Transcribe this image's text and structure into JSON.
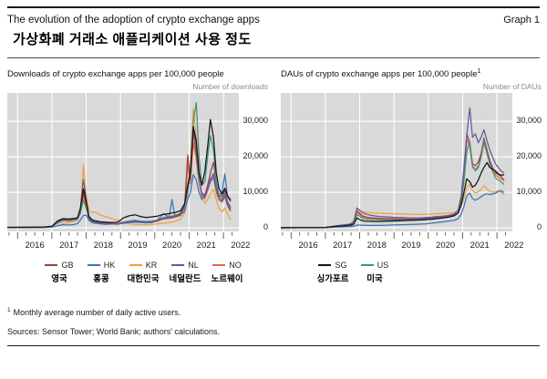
{
  "header": {
    "title_en": "The evolution of the adoption of crypto exchange apps",
    "graph_label": "Graph 1",
    "title_ko": "가상화폐 거래소 애플리케이션 사용 정도"
  },
  "panels": [
    {
      "title": "Downloads of crypto exchange apps per 100,000 people",
      "title_sup": "",
      "axis_label": "Number of downloads"
    },
    {
      "title": "DAUs of crypto exchange apps per 100,000 people",
      "title_sup": "1",
      "axis_label": "Number of DAUs"
    }
  ],
  "legend": {
    "items": [
      {
        "code": "GB",
        "name_ko": "영국"
      },
      {
        "code": "HK",
        "name_ko": "홍콩"
      },
      {
        "code": "KR",
        "name_ko": "대한민국"
      },
      {
        "code": "NL",
        "name_ko": "네덜란드"
      },
      {
        "code": "NO",
        "name_ko": "노르웨이"
      },
      {
        "code": "SG",
        "name_ko": "싱가포르"
      },
      {
        "code": "US",
        "name_ko": "미국"
      }
    ]
  },
  "footnotes": {
    "sup": "1",
    "note": "Monthly average number of daily active users.",
    "sources": "Sources: Sensor Tower; World Bank; authors' calculations."
  },
  "colors": {
    "GB": "#a0403c",
    "HK": "#3e72b5",
    "KR": "#efa13c",
    "NL": "#6b549c",
    "NO": "#e26a3c",
    "SG": "#141414",
    "US": "#41917f",
    "plot_bg": "#d9d9d9",
    "grid": "#ffffff",
    "muted_text": "#8c8c8c"
  },
  "chart_data": [
    {
      "type": "line",
      "title": "Downloads of crypto exchange apps per 100,000 people",
      "ylabel": "Number of downloads",
      "xlim": [
        2015.7,
        2022.45
      ],
      "ylim": [
        -1000,
        38000
      ],
      "yticks": [
        0,
        10000,
        20000,
        30000
      ],
      "ytick_labels": [
        "0",
        "10,000",
        "20,000",
        "30,000"
      ],
      "year_gridlines": [
        2016,
        2017,
        2018,
        2019,
        2020,
        2021,
        2022
      ],
      "year_labels": [
        "2016",
        "2017",
        "2018",
        "2019",
        "2020",
        "2021",
        "2022"
      ],
      "x": [
        2015.7,
        2016.0,
        2016.25,
        2016.5,
        2016.75,
        2017.0,
        2017.17,
        2017.33,
        2017.5,
        2017.67,
        2017.75,
        2017.83,
        2017.92,
        2018.0,
        2018.08,
        2018.17,
        2018.25,
        2018.42,
        2018.58,
        2018.75,
        2018.92,
        2019.08,
        2019.25,
        2019.42,
        2019.58,
        2019.75,
        2019.92,
        2020.08,
        2020.25,
        2020.42,
        2020.5,
        2020.58,
        2020.75,
        2020.87,
        2020.96,
        2021.04,
        2021.12,
        2021.21,
        2021.29,
        2021.37,
        2021.46,
        2021.54,
        2021.62,
        2021.71,
        2021.79,
        2021.87,
        2021.96,
        2022.04,
        2022.12,
        2022.21
      ],
      "series": [
        {
          "name": "NO",
          "values": [
            90,
            120,
            130,
            150,
            180,
            300,
            1300,
            2000,
            1900,
            2200,
            2400,
            4000,
            9200,
            6000,
            2500,
            1800,
            1500,
            1300,
            1200,
            1100,
            1000,
            1300,
            1600,
            1800,
            1600,
            1500,
            1600,
            1900,
            2500,
            2700,
            2800,
            3000,
            3500,
            5500,
            17800,
            12500,
            24000,
            19500,
            12500,
            8800,
            8200,
            10500,
            13000,
            14000,
            10000,
            7800,
            7200,
            8800,
            6200,
            4600
          ]
        },
        {
          "name": "GB",
          "values": [
            100,
            140,
            150,
            170,
            200,
            350,
            1500,
            2200,
            2100,
            2400,
            2600,
            4200,
            10200,
            6500,
            2800,
            2000,
            1700,
            1400,
            1300,
            1200,
            1100,
            1400,
            1700,
            1900,
            1700,
            1600,
            1700,
            2000,
            2600,
            2800,
            2900,
            3100,
            3600,
            6000,
            20500,
            13500,
            27000,
            21000,
            13500,
            9800,
            9200,
            12000,
            15500,
            18500,
            12500,
            9300,
            8800,
            10500,
            7400,
            5800
          ]
        },
        {
          "name": "KR",
          "values": [
            50,
            70,
            70,
            80,
            90,
            200,
            600,
            1200,
            1500,
            1800,
            2200,
            5000,
            17800,
            9200,
            5000,
            4300,
            4500,
            3600,
            3100,
            2600,
            2100,
            1300,
            1100,
            1000,
            900,
            900,
            1000,
            1100,
            1300,
            1500,
            1600,
            1800,
            2400,
            4200,
            9000,
            16000,
            33500,
            26000,
            13000,
            8500,
            7000,
            8000,
            9500,
            10800,
            8000,
            5500,
            4500,
            5600,
            3900,
            2300
          ]
        },
        {
          "name": "HK",
          "values": [
            80,
            100,
            110,
            120,
            130,
            200,
            600,
            900,
            800,
            1000,
            1200,
            2200,
            3500,
            3600,
            2100,
            1500,
            1300,
            1100,
            1000,
            1100,
            1200,
            1300,
            1500,
            1600,
            1500,
            1400,
            1500,
            2200,
            4000,
            3000,
            8000,
            3600,
            3800,
            4600,
            8000,
            10000,
            15000,
            13500,
            10000,
            8000,
            9500,
            11000,
            13000,
            14500,
            11000,
            9200,
            10000,
            15200,
            8800,
            7400
          ]
        },
        {
          "name": "US",
          "values": [
            100,
            130,
            140,
            160,
            180,
            350,
            1400,
            2100,
            2000,
            2300,
            2500,
            4300,
            7800,
            5600,
            2400,
            1800,
            1500,
            1300,
            1200,
            1100,
            1100,
            1600,
            1900,
            2100,
            1900,
            1800,
            1900,
            2200,
            2900,
            3200,
            3300,
            3500,
            4100,
            6200,
            10000,
            15500,
            30000,
            35300,
            20000,
            12000,
            13000,
            20000,
            26000,
            22000,
            13000,
            9000,
            8000,
            9600,
            7000,
            5400
          ]
        },
        {
          "name": "NL",
          "values": [
            100,
            130,
            140,
            160,
            190,
            400,
            1800,
            2400,
            2300,
            2500,
            2700,
            5200,
            13600,
            7800,
            2700,
            1900,
            1600,
            1300,
            1200,
            1100,
            1100,
            1500,
            1800,
            2000,
            1800,
            1700,
            1800,
            2100,
            2700,
            3000,
            3100,
            3300,
            3800,
            6500,
            12000,
            15000,
            28200,
            23500,
            13800,
            9400,
            8700,
            11200,
            13800,
            15300,
            10800,
            8200,
            7600,
            9200,
            6400,
            4900
          ]
        },
        {
          "name": "SG",
          "values": [
            150,
            180,
            190,
            210,
            240,
            450,
            2000,
            2600,
            2500,
            2700,
            2900,
            5600,
            11000,
            7600,
            3200,
            2300,
            2000,
            1700,
            1600,
            1500,
            1600,
            2800,
            3400,
            3700,
            3200,
            2900,
            3100,
            3300,
            3800,
            4000,
            4200,
            4300,
            4800,
            6800,
            12000,
            16000,
            28500,
            24500,
            15500,
            12000,
            16000,
            23000,
            30500,
            25500,
            15500,
            11000,
            9500,
            11200,
            9000,
            7800
          ]
        }
      ]
    },
    {
      "type": "line",
      "title": "DAUs of crypto exchange apps per 100,000 people",
      "ylabel": "Number of DAUs",
      "xlim": [
        2015.7,
        2022.45
      ],
      "ylim": [
        -1000,
        38000
      ],
      "yticks": [
        0,
        10000,
        20000,
        30000
      ],
      "ytick_labels": [
        "0",
        "10,000",
        "20,000",
        "30,000"
      ],
      "year_gridlines": [
        2016,
        2017,
        2018,
        2019,
        2020,
        2021,
        2022
      ],
      "year_labels": [
        "2016",
        "2017",
        "2018",
        "2019",
        "2020",
        "2021",
        "2022"
      ],
      "x": [
        2015.7,
        2016.0,
        2016.25,
        2016.5,
        2016.75,
        2017.0,
        2017.17,
        2017.33,
        2017.5,
        2017.67,
        2017.75,
        2017.83,
        2017.92,
        2018.0,
        2018.08,
        2018.17,
        2018.25,
        2018.42,
        2018.58,
        2018.75,
        2018.92,
        2019.08,
        2019.25,
        2019.42,
        2019.58,
        2019.75,
        2019.92,
        2020.08,
        2020.25,
        2020.42,
        2020.5,
        2020.58,
        2020.75,
        2020.87,
        2020.96,
        2021.04,
        2021.12,
        2021.21,
        2021.29,
        2021.37,
        2021.46,
        2021.54,
        2021.62,
        2021.71,
        2021.79,
        2021.87,
        2021.96,
        2022.04,
        2022.12,
        2022.21
      ],
      "series": [
        {
          "name": "NO",
          "values": [
            30,
            40,
            50,
            60,
            70,
            110,
            220,
            320,
            380,
            450,
            550,
            1000,
            4400,
            3800,
            3100,
            2900,
            2750,
            2650,
            2600,
            2550,
            2500,
            2450,
            2450,
            2450,
            2450,
            2500,
            2600,
            2700,
            2800,
            3000,
            3100,
            3200,
            3500,
            4100,
            7500,
            14000,
            25000,
            23000,
            17000,
            16500,
            17500,
            20000,
            24000,
            21000,
            18000,
            16200,
            14800,
            14300,
            13800,
            13500
          ]
        },
        {
          "name": "GB",
          "values": [
            30,
            50,
            60,
            70,
            80,
            120,
            250,
            350,
            400,
            500,
            600,
            1100,
            4800,
            4200,
            3400,
            3100,
            2900,
            2800,
            2700,
            2600,
            2600,
            2500,
            2500,
            2500,
            2500,
            2600,
            2700,
            2800,
            2900,
            3100,
            3200,
            3300,
            3600,
            4300,
            8000,
            15000,
            26500,
            24000,
            18000,
            17500,
            18500,
            21000,
            25300,
            22000,
            19000,
            17000,
            15500,
            15000,
            14500,
            13300
          ]
        },
        {
          "name": "KR",
          "values": [
            30,
            50,
            60,
            70,
            80,
            130,
            300,
            500,
            700,
            900,
            1100,
            1600,
            5300,
            4800,
            4500,
            4400,
            4300,
            4200,
            4100,
            4050,
            4000,
            3950,
            3900,
            3850,
            3800,
            3800,
            3800,
            3900,
            4000,
            4050,
            4100,
            4150,
            4300,
            4800,
            6000,
            8500,
            11500,
            12300,
            10500,
            9800,
            10200,
            10800,
            11800,
            11000,
            10300,
            10000,
            10200,
            10500,
            10000,
            9300
          ]
        },
        {
          "name": "HK",
          "values": [
            20,
            30,
            40,
            40,
            50,
            80,
            150,
            200,
            250,
            300,
            350,
            450,
            800,
            800,
            750,
            720,
            700,
            700,
            700,
            750,
            800,
            850,
            900,
            950,
            1000,
            1050,
            1100,
            1300,
            1500,
            1700,
            1800,
            1900,
            2100,
            2600,
            3800,
            6000,
            9000,
            9800,
            8200,
            7800,
            8200,
            8800,
            9300,
            9600,
            9400,
            9500,
            9800,
            10200,
            10500,
            9900
          ]
        },
        {
          "name": "US",
          "values": [
            30,
            50,
            60,
            70,
            80,
            120,
            280,
            420,
            500,
            650,
            800,
            1100,
            3800,
            3300,
            2700,
            2500,
            2400,
            2300,
            2250,
            2200,
            2200,
            2200,
            2200,
            2250,
            2250,
            2300,
            2400,
            2500,
            2700,
            2850,
            2950,
            3050,
            3400,
            4300,
            7000,
            13000,
            21500,
            24300,
            17500,
            16000,
            17000,
            20000,
            24800,
            21000,
            18000,
            16000,
            14000,
            13500,
            13000,
            12200
          ]
        },
        {
          "name": "NL",
          "values": [
            30,
            50,
            60,
            70,
            90,
            140,
            350,
            600,
            800,
            1000,
            1200,
            2000,
            5600,
            5000,
            4300,
            3900,
            3700,
            3400,
            3200,
            3100,
            3000,
            2900,
            2900,
            2800,
            2800,
            2800,
            2900,
            3000,
            3200,
            3300,
            3400,
            3500,
            3900,
            5000,
            9000,
            17000,
            26000,
            33800,
            25500,
            26500,
            24000,
            25500,
            27600,
            24500,
            22000,
            20000,
            18000,
            17000,
            16000,
            15500
          ]
        },
        {
          "name": "SG",
          "values": [
            40,
            60,
            70,
            80,
            90,
            140,
            300,
            450,
            550,
            700,
            850,
            1200,
            2800,
            2300,
            2000,
            1900,
            1850,
            1800,
            1800,
            1850,
            1900,
            1950,
            2000,
            2100,
            2150,
            2200,
            2300,
            2400,
            2600,
            2800,
            2900,
            3000,
            3400,
            4200,
            6500,
            10000,
            13800,
            13000,
            11500,
            12000,
            13500,
            15500,
            17000,
            18400,
            17000,
            16500,
            16000,
            15200,
            14800,
            15000
          ]
        }
      ]
    }
  ]
}
